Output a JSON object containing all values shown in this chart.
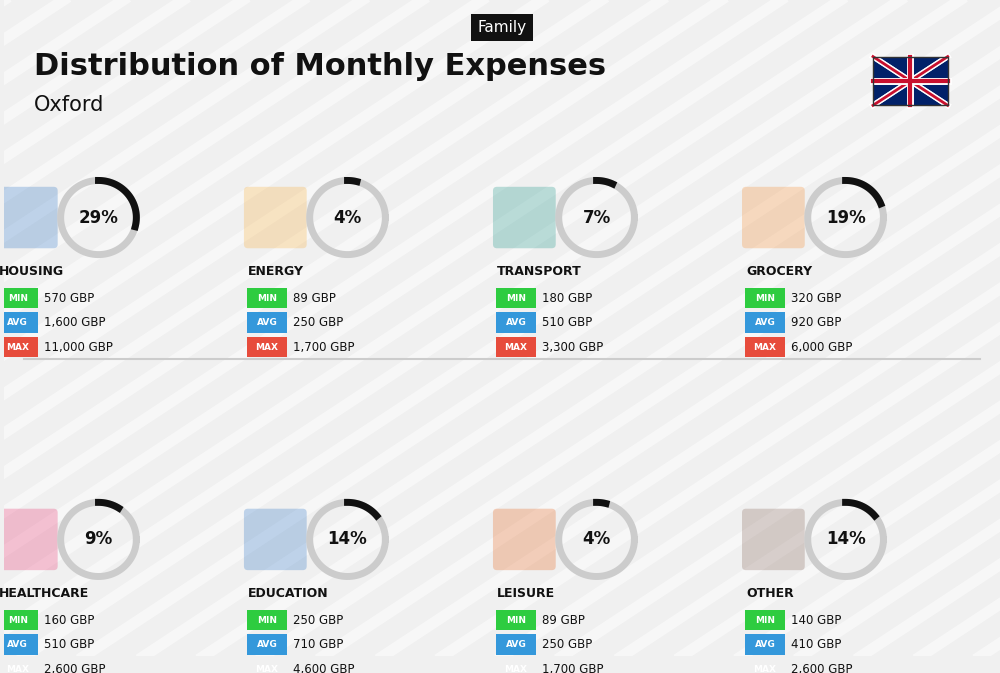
{
  "title": "Distribution of Monthly Expenses",
  "subtitle": "Oxford",
  "tag": "Family",
  "bg_color": "#f0f0f0",
  "categories": [
    {
      "name": "HOUSING",
      "pct": 29,
      "min_val": "570 GBP",
      "avg_val": "1,600 GBP",
      "max_val": "11,000 GBP",
      "col": 0,
      "row": 0
    },
    {
      "name": "ENERGY",
      "pct": 4,
      "min_val": "89 GBP",
      "avg_val": "250 GBP",
      "max_val": "1,700 GBP",
      "col": 1,
      "row": 0
    },
    {
      "name": "TRANSPORT",
      "pct": 7,
      "min_val": "180 GBP",
      "avg_val": "510 GBP",
      "max_val": "3,300 GBP",
      "col": 2,
      "row": 0
    },
    {
      "name": "GROCERY",
      "pct": 19,
      "min_val": "320 GBP",
      "avg_val": "920 GBP",
      "max_val": "6,000 GBP",
      "col": 3,
      "row": 0
    },
    {
      "name": "HEALTHCARE",
      "pct": 9,
      "min_val": "160 GBP",
      "avg_val": "510 GBP",
      "max_val": "2,600 GBP",
      "col": 0,
      "row": 1
    },
    {
      "name": "EDUCATION",
      "pct": 14,
      "min_val": "250 GBP",
      "avg_val": "710 GBP",
      "max_val": "4,600 GBP",
      "col": 1,
      "row": 1
    },
    {
      "name": "LEISURE",
      "pct": 4,
      "min_val": "89 GBP",
      "avg_val": "250 GBP",
      "max_val": "1,700 GBP",
      "col": 2,
      "row": 1
    },
    {
      "name": "OTHER",
      "pct": 14,
      "min_val": "140 GBP",
      "avg_val": "410 GBP",
      "max_val": "2,600 GBP",
      "col": 3,
      "row": 1
    }
  ],
  "min_color": "#2ecc40",
  "avg_color": "#3498db",
  "max_color": "#e74c3c",
  "label_color": "#ffffff",
  "text_color": "#111111",
  "donut_bg": "#cccccc",
  "donut_fg": "#111111"
}
